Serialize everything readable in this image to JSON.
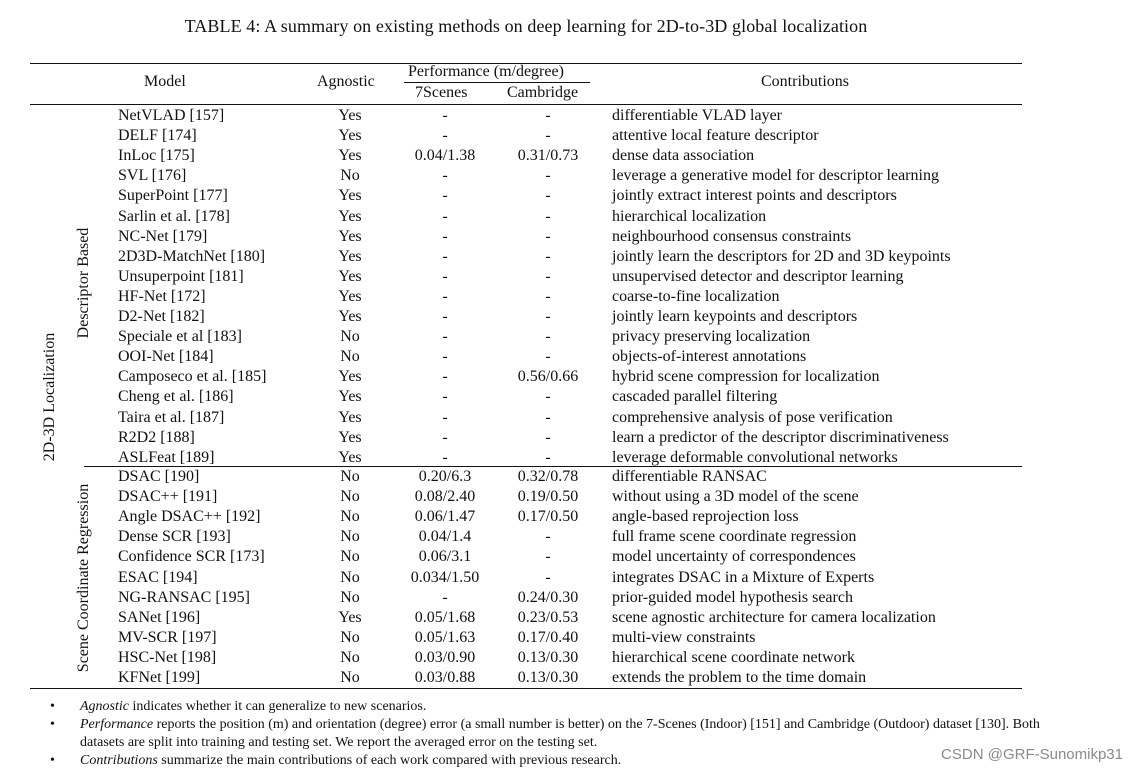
{
  "caption": "TABLE 4: A summary on existing methods on deep learning for 2D-to-3D global localization",
  "headers": {
    "model": "Model",
    "agnostic": "Agnostic",
    "performance": "Performance (m/degree)",
    "sevenscenes": "7Scenes",
    "cambridge": "Cambridge",
    "contributions": "Contributions"
  },
  "outer_group": "2D-3D Localization",
  "groups": [
    {
      "label": "Descriptor Based",
      "rows": [
        {
          "model": "NetVLAD [157]",
          "agnostic": "Yes",
          "s7": "-",
          "cam": "-",
          "contribution": "differentiable VLAD layer"
        },
        {
          "model": "DELF [174]",
          "agnostic": "Yes",
          "s7": "-",
          "cam": "-",
          "contribution": "attentive local feature descriptor"
        },
        {
          "model": "InLoc [175]",
          "agnostic": "Yes",
          "s7": "0.04/1.38",
          "cam": "0.31/0.73",
          "contribution": "dense data association"
        },
        {
          "model": "SVL [176]",
          "agnostic": "No",
          "s7": "-",
          "cam": "-",
          "contribution": "leverage a generative model for descriptor learning"
        },
        {
          "model": "SuperPoint [177]",
          "agnostic": "Yes",
          "s7": "-",
          "cam": "-",
          "contribution": "jointly extract interest points and descriptors"
        },
        {
          "model": "Sarlin et al. [178]",
          "agnostic": "Yes",
          "s7": "-",
          "cam": "-",
          "contribution": "hierarchical localization"
        },
        {
          "model": "NC-Net [179]",
          "agnostic": "Yes",
          "s7": "-",
          "cam": "-",
          "contribution": "neighbourhood consensus constraints"
        },
        {
          "model": "2D3D-MatchNet [180]",
          "agnostic": "Yes",
          "s7": "-",
          "cam": "-",
          "contribution": "jointly learn the descriptors for 2D and 3D keypoints"
        },
        {
          "model": "Unsuperpoint [181]",
          "agnostic": "Yes",
          "s7": "-",
          "cam": "-",
          "contribution": "unsupervised detector and descriptor learning"
        },
        {
          "model": "HF-Net [172]",
          "agnostic": "Yes",
          "s7": "-",
          "cam": "-",
          "contribution": "coarse-to-fine localization"
        },
        {
          "model": "D2-Net [182]",
          "agnostic": "Yes",
          "s7": "-",
          "cam": "-",
          "contribution": "jointly learn keypoints and descriptors"
        },
        {
          "model": "Speciale et al [183]",
          "agnostic": "No",
          "s7": "-",
          "cam": "-",
          "contribution": "privacy preserving localization"
        },
        {
          "model": "OOI-Net [184]",
          "agnostic": "No",
          "s7": "-",
          "cam": "-",
          "contribution": "objects-of-interest annotations"
        },
        {
          "model": "Camposeco et al. [185]",
          "agnostic": "Yes",
          "s7": "-",
          "cam": "0.56/0.66",
          "contribution": "hybrid scene compression for localization"
        },
        {
          "model": "Cheng et al. [186]",
          "agnostic": "Yes",
          "s7": "-",
          "cam": "-",
          "contribution": "cascaded parallel filtering"
        },
        {
          "model": "Taira et al. [187]",
          "agnostic": "Yes",
          "s7": "-",
          "cam": "-",
          "contribution": "comprehensive analysis of pose verification"
        },
        {
          "model": "R2D2 [188]",
          "agnostic": "Yes",
          "s7": "-",
          "cam": "-",
          "contribution": "learn a predictor of the descriptor discriminativeness"
        },
        {
          "model": "ASLFeat [189]",
          "agnostic": "Yes",
          "s7": "-",
          "cam": "-",
          "contribution": "leverage deformable convolutional networks"
        }
      ]
    },
    {
      "label": "Scene Coordinate Regression",
      "rows": [
        {
          "model": "DSAC [190]",
          "agnostic": "No",
          "s7": "0.20/6.3",
          "cam": "0.32/0.78",
          "contribution": "differentiable RANSAC"
        },
        {
          "model": "DSAC++ [191]",
          "agnostic": "No",
          "s7": "0.08/2.40",
          "cam": "0.19/0.50",
          "contribution": "without using a 3D model of the scene"
        },
        {
          "model": "Angle DSAC++ [192]",
          "agnostic": "No",
          "s7": "0.06/1.47",
          "cam": "0.17/0.50",
          "contribution": "angle-based reprojection loss"
        },
        {
          "model": "Dense SCR [193]",
          "agnostic": "No",
          "s7": "0.04/1.4",
          "cam": "-",
          "contribution": "full frame scene coordinate regression"
        },
        {
          "model": "Confidence SCR [173]",
          "agnostic": "No",
          "s7": "0.06/3.1",
          "cam": "-",
          "contribution": "model uncertainty of correspondences"
        },
        {
          "model": "ESAC [194]",
          "agnostic": "No",
          "s7": "0.034/1.50",
          "cam": "-",
          "contribution": "integrates DSAC in a Mixture of Experts"
        },
        {
          "model": "NG-RANSAC [195]",
          "agnostic": "No",
          "s7": "-",
          "cam": "0.24/0.30",
          "contribution": "prior-guided model hypothesis search"
        },
        {
          "model": "SANet [196]",
          "agnostic": "Yes",
          "s7": "0.05/1.68",
          "cam": "0.23/0.53",
          "contribution": "scene agnostic architecture for camera localization"
        },
        {
          "model": "MV-SCR [197]",
          "agnostic": "No",
          "s7": "0.05/1.63",
          "cam": "0.17/0.40",
          "contribution": "multi-view constraints"
        },
        {
          "model": "HSC-Net [198]",
          "agnostic": "No",
          "s7": "0.03/0.90",
          "cam": "0.13/0.30",
          "contribution": "hierarchical scene coordinate network"
        },
        {
          "model": "KFNet [199]",
          "agnostic": "No",
          "s7": "0.03/0.88",
          "cam": "0.13/0.30",
          "contribution": "extends the problem to the time domain"
        }
      ]
    }
  ],
  "notes": [
    {
      "term": "Agnostic",
      "text": " indicates whether it can generalize to new scenarios."
    },
    {
      "term": "Performance",
      "text": " reports the position (m) and orientation (degree) error (a small number is better) on the 7-Scenes (Indoor) [151] and Cambridge (Outdoor) dataset [130]. Both datasets are split into training and testing set. We report the averaged error on the testing set."
    },
    {
      "term": "Contributions",
      "text": " summarize the main contributions of each work compared with previous research."
    }
  ],
  "watermark": "CSDN @GRF-Sunomikp31"
}
